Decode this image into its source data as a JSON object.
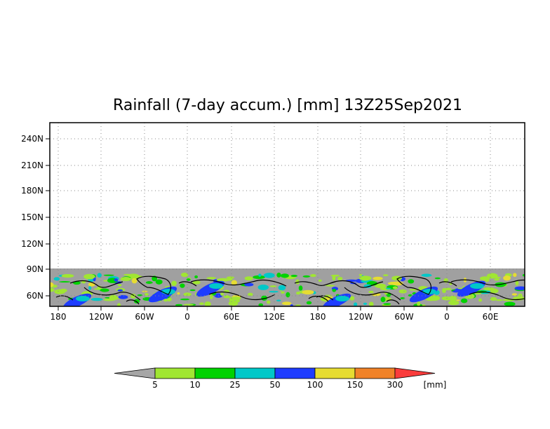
{
  "title": "Rainfall (7-day accum.) [mm] 13Z25Sep2021",
  "map": {
    "lat_ticks": [
      "240N",
      "210N",
      "180N",
      "150N",
      "120N",
      "90N",
      "60N"
    ],
    "lon_ticks": [
      "180",
      "120W",
      "60W",
      "0",
      "60E",
      "120E",
      "180",
      "120W",
      "60W",
      "0",
      "60E"
    ],
    "land_color": "#a0a0a0",
    "coastline_color": "#000000"
  },
  "colorbar": {
    "unit": "[mm]",
    "labels": [
      "5",
      "10",
      "25",
      "50",
      "100",
      "150",
      "300"
    ],
    "colors": [
      "#a6a6a6",
      "#a0e632",
      "#00d200",
      "#00c8c8",
      "#1e3cff",
      "#e6dc32",
      "#f08228",
      "#fa3c3c"
    ]
  }
}
